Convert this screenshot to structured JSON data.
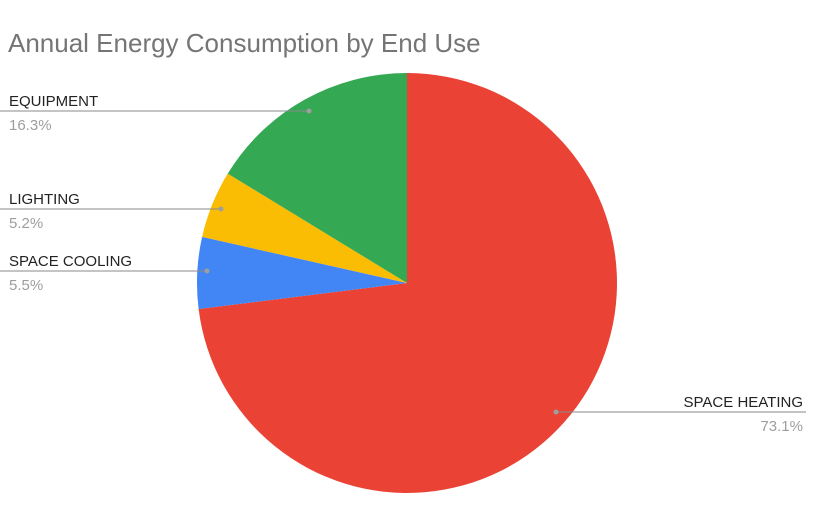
{
  "chart_data": {
    "type": "pie",
    "title": "Annual Energy Consumption by End Use",
    "slices": [
      {
        "label": "SPACE HEATING",
        "value": 73.1,
        "display": "73.1%",
        "color": "#ea4335"
      },
      {
        "label": "SPACE COOLING",
        "value": 5.5,
        "display": "5.5%",
        "color": "#4285f4"
      },
      {
        "label": "LIGHTING",
        "value": 5.2,
        "display": "5.2%",
        "color": "#fbbc04"
      },
      {
        "label": "EQUIPMENT",
        "value": 16.3,
        "display": "16.3%",
        "color": "#34a853"
      }
    ],
    "start_angle": "12 o'clock",
    "direction": "clockwise",
    "legend": "none",
    "labels": "outside with leader lines"
  }
}
